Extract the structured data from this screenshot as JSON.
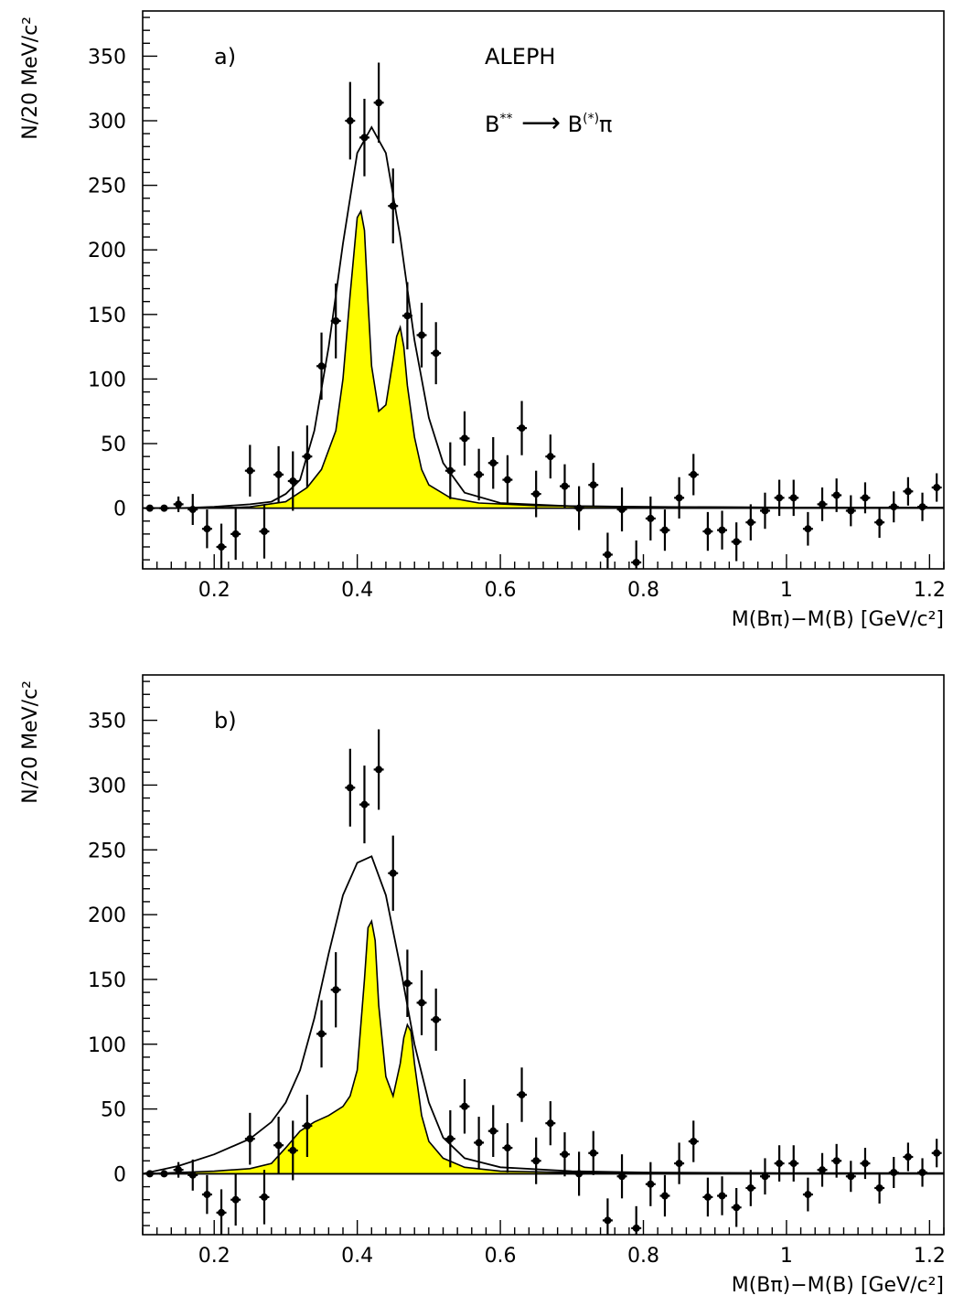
{
  "chart_data": [
    {
      "type": "scatter",
      "panel_label": "a)",
      "experiment": "ALEPH",
      "process": {
        "base": "B",
        "sup1": "**",
        "arrow": "⟶",
        "base2": "B",
        "sup2": "(*)",
        "tail": "π"
      },
      "xlabel": "M(Bπ)−M(B) [GeV/c²]",
      "ylabel": "N/20 MeV/c²",
      "xlim": [
        0.1,
        1.22
      ],
      "ylim": [
        -47,
        385
      ],
      "xticks": [
        "0.2",
        "0.4",
        "0.6",
        "0.8",
        "1",
        "1.2"
      ],
      "yticks": [
        "0",
        "50",
        "100",
        "150",
        "200",
        "250",
        "300",
        "350"
      ],
      "data_points": {
        "x": [
          0.11,
          0.13,
          0.15,
          0.17,
          0.19,
          0.21,
          0.23,
          0.25,
          0.27,
          0.29,
          0.31,
          0.33,
          0.35,
          0.37,
          0.39,
          0.41,
          0.43,
          0.45,
          0.47,
          0.49,
          0.51,
          0.53,
          0.55,
          0.57,
          0.59,
          0.61,
          0.63,
          0.65,
          0.67,
          0.69,
          0.71,
          0.73,
          0.75,
          0.77,
          0.79,
          0.81,
          0.83,
          0.85,
          0.87,
          0.89,
          0.91,
          0.93,
          0.95,
          0.97,
          0.99,
          1.01,
          1.03,
          1.05,
          1.07,
          1.09,
          1.11,
          1.13,
          1.15,
          1.17,
          1.19,
          1.21
        ],
        "y": [
          0,
          0,
          3,
          -1,
          -16,
          -30,
          -20,
          29,
          -18,
          26,
          21,
          40,
          110,
          145,
          300,
          287,
          314,
          234,
          149,
          134,
          120,
          29,
          54,
          26,
          35,
          22,
          62,
          11,
          40,
          17,
          0,
          18,
          -36,
          -1,
          -42,
          -8,
          -17,
          8,
          26,
          -18,
          -17,
          -26,
          -11,
          -2,
          8,
          8,
          -16,
          3,
          10,
          -2,
          8,
          -11,
          1,
          13,
          1,
          16
        ],
        "yerr": [
          2,
          2,
          6,
          12,
          15,
          18,
          20,
          20,
          21,
          22,
          23,
          24,
          26,
          29,
          30,
          30,
          31,
          29,
          26,
          25,
          24,
          22,
          21,
          20,
          20,
          19,
          21,
          18,
          17,
          17,
          17,
          17,
          17,
          17,
          17,
          17,
          16,
          16,
          16,
          15,
          15,
          15,
          14,
          14,
          14,
          14,
          13,
          13,
          13,
          12,
          12,
          12,
          12,
          11,
          11,
          11
        ]
      },
      "curves": {
        "total_fit": {
          "x": [
            0.1,
            0.15,
            0.2,
            0.25,
            0.28,
            0.3,
            0.32,
            0.34,
            0.36,
            0.38,
            0.4,
            0.42,
            0.44,
            0.46,
            0.48,
            0.5,
            0.52,
            0.55,
            0.6,
            0.7,
            0.8,
            1.0,
            1.22
          ],
          "y": [
            0,
            0,
            1,
            3,
            5,
            11,
            22,
            60,
            125,
            205,
            275,
            295,
            275,
            210,
            130,
            70,
            35,
            12,
            4,
            1.5,
            1,
            0.5,
            0.5
          ]
        },
        "signal_component": {
          "color": "#ffff00",
          "x": [
            0.1,
            0.2,
            0.25,
            0.3,
            0.33,
            0.35,
            0.37,
            0.38,
            0.39,
            0.4,
            0.405,
            0.41,
            0.415,
            0.42,
            0.43,
            0.44,
            0.45,
            0.455,
            0.46,
            0.465,
            0.47,
            0.48,
            0.49,
            0.5,
            0.53,
            0.57,
            0.65,
            0.8,
            1.0,
            1.22
          ],
          "y": [
            0,
            0,
            1,
            5,
            16,
            30,
            60,
            100,
            165,
            225,
            230,
            215,
            160,
            110,
            75,
            80,
            115,
            133,
            140,
            125,
            95,
            55,
            30,
            18,
            8,
            4,
            2,
            1,
            0.5,
            0
          ]
        }
      }
    },
    {
      "type": "scatter",
      "panel_label": "b)",
      "xlabel": "M(Bπ)−M(B) [GeV/c²]",
      "ylabel": "N/20 MeV/c²",
      "xlim": [
        0.1,
        1.22
      ],
      "ylim": [
        -47,
        385
      ],
      "xticks": [
        "0.2",
        "0.4",
        "0.6",
        "0.8",
        "1",
        "1.2"
      ],
      "yticks": [
        "0",
        "50",
        "100",
        "150",
        "200",
        "250",
        "300",
        "350"
      ],
      "data_points": {
        "x": [
          0.11,
          0.13,
          0.15,
          0.17,
          0.19,
          0.21,
          0.23,
          0.25,
          0.27,
          0.29,
          0.31,
          0.33,
          0.35,
          0.37,
          0.39,
          0.41,
          0.43,
          0.45,
          0.47,
          0.49,
          0.51,
          0.53,
          0.55,
          0.57,
          0.59,
          0.61,
          0.63,
          0.65,
          0.67,
          0.69,
          0.71,
          0.73,
          0.75,
          0.77,
          0.79,
          0.81,
          0.83,
          0.85,
          0.87,
          0.89,
          0.91,
          0.93,
          0.95,
          0.97,
          0.99,
          1.01,
          1.03,
          1.05,
          1.07,
          1.09,
          1.11,
          1.13,
          1.15,
          1.17,
          1.19,
          1.21
        ],
        "y": [
          0,
          0,
          3,
          -1,
          -16,
          -30,
          -20,
          27,
          -18,
          22,
          18,
          37,
          108,
          142,
          298,
          285,
          312,
          232,
          147,
          132,
          119,
          27,
          52,
          24,
          33,
          20,
          61,
          10,
          39,
          15,
          0,
          16,
          -36,
          -2,
          -42,
          -8,
          -17,
          8,
          25,
          -18,
          -17,
          -26,
          -11,
          -2,
          8,
          8,
          -16,
          3,
          10,
          -2,
          8,
          -11,
          1,
          13,
          1,
          16
        ],
        "yerr": [
          2,
          2,
          6,
          12,
          15,
          18,
          20,
          20,
          21,
          22,
          23,
          24,
          26,
          29,
          30,
          30,
          31,
          29,
          26,
          25,
          24,
          22,
          21,
          20,
          20,
          19,
          21,
          18,
          17,
          17,
          17,
          17,
          17,
          17,
          17,
          17,
          16,
          16,
          16,
          15,
          15,
          15,
          14,
          14,
          14,
          14,
          13,
          13,
          13,
          12,
          12,
          12,
          12,
          11,
          11,
          11
        ]
      },
      "curves": {
        "total_fit": {
          "x": [
            0.1,
            0.15,
            0.2,
            0.25,
            0.28,
            0.3,
            0.32,
            0.34,
            0.36,
            0.38,
            0.4,
            0.42,
            0.44,
            0.46,
            0.48,
            0.5,
            0.52,
            0.55,
            0.6,
            0.7,
            0.8,
            1.0,
            1.22
          ],
          "y": [
            0,
            6,
            15,
            27,
            40,
            55,
            80,
            120,
            170,
            215,
            240,
            245,
            215,
            160,
            100,
            55,
            28,
            12,
            5,
            2,
            1,
            0.5,
            0.5
          ]
        },
        "signal_component": {
          "color": "#ffff00",
          "x": [
            0.1,
            0.15,
            0.2,
            0.25,
            0.28,
            0.3,
            0.32,
            0.34,
            0.36,
            0.38,
            0.39,
            0.4,
            0.41,
            0.415,
            0.42,
            0.425,
            0.43,
            0.44,
            0.45,
            0.46,
            0.465,
            0.47,
            0.475,
            0.48,
            0.49,
            0.5,
            0.52,
            0.55,
            0.6,
            0.7,
            0.8,
            1.0,
            1.22
          ],
          "y": [
            0,
            1,
            2,
            4,
            8,
            20,
            33,
            40,
            45,
            52,
            60,
            80,
            150,
            190,
            195,
            180,
            130,
            75,
            60,
            85,
            105,
            115,
            110,
            85,
            45,
            25,
            12,
            5,
            2,
            1,
            0.5,
            0,
            0
          ]
        }
      }
    }
  ]
}
